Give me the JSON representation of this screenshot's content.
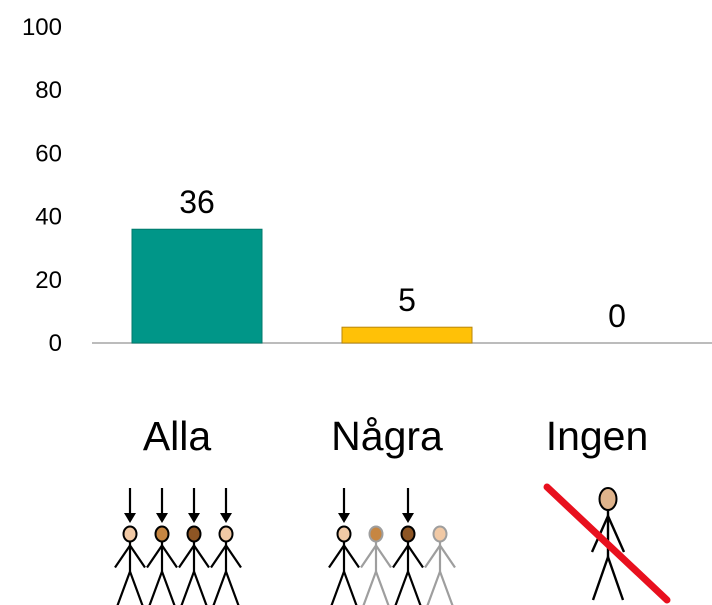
{
  "chart_data": {
    "type": "bar",
    "categories": [
      "Alla",
      "Några",
      "Ingen"
    ],
    "values": [
      36,
      5,
      0
    ],
    "colors": [
      "#009688",
      "#FFC107",
      "#FFC107"
    ],
    "bar_outline_colors": [
      "#00796B",
      "#B8860B",
      "#B8860B"
    ],
    "ylim": [
      0,
      100
    ],
    "yticks": [
      0,
      20,
      40,
      60,
      80,
      100
    ],
    "grid": false,
    "legend": "none",
    "category_icons": [
      {
        "name": "people-all-icon",
        "figures": [
          "#F1C9A5",
          "#C68642",
          "#8D5524",
          "#F1C9A5"
        ],
        "arrows": [
          true,
          true,
          true,
          true
        ]
      },
      {
        "name": "people-some-icon",
        "figures": [
          "#F1C9A5",
          "#C68642",
          "#8D5524",
          "#F1C9A5"
        ],
        "arrows": [
          true,
          false,
          true,
          false
        ]
      },
      {
        "name": "people-none-icon",
        "figures": [
          "#E0B48C"
        ],
        "arrows": [
          false
        ],
        "crossed": true,
        "cross_color": "#E8101E"
      }
    ]
  }
}
